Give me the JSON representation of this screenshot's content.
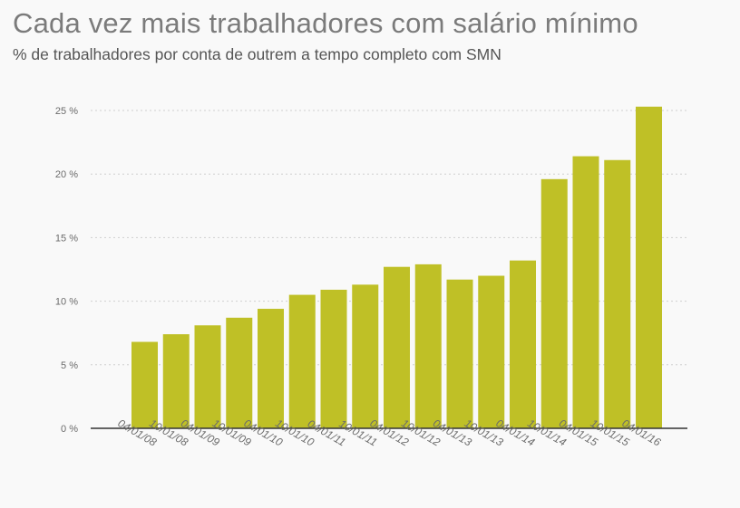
{
  "chart_data": {
    "type": "bar",
    "title": "Cada vez mais trabalhadores com salário mínimo",
    "subtitle": "% de trabalhadores por conta de outrem a tempo completo com SMN",
    "xlabel": "",
    "ylabel": "",
    "ylim": [
      0,
      25
    ],
    "yticks": [
      0,
      5,
      10,
      15,
      20,
      25
    ],
    "ytick_labels": [
      "0 %",
      "5 %",
      "10 %",
      "15 %",
      "20 %",
      "25 %"
    ],
    "grid": true,
    "color": "#bfc026",
    "categories": [
      "04/01/08",
      "10/01/08",
      "04/01/09",
      "10/01/09",
      "04/01/10",
      "10/01/10",
      "04/01/11",
      "10/01/11",
      "04/01/12",
      "10/01/12",
      "04/01/13",
      "10/01/13",
      "04/01/14",
      "10/01/14",
      "04/01/15",
      "10/01/15",
      "04/01/16"
    ],
    "values": [
      6.8,
      7.4,
      8.1,
      8.7,
      9.4,
      10.5,
      10.9,
      11.3,
      12.7,
      12.9,
      11.7,
      12.0,
      13.2,
      19.6,
      21.4,
      21.1,
      25.3
    ]
  }
}
